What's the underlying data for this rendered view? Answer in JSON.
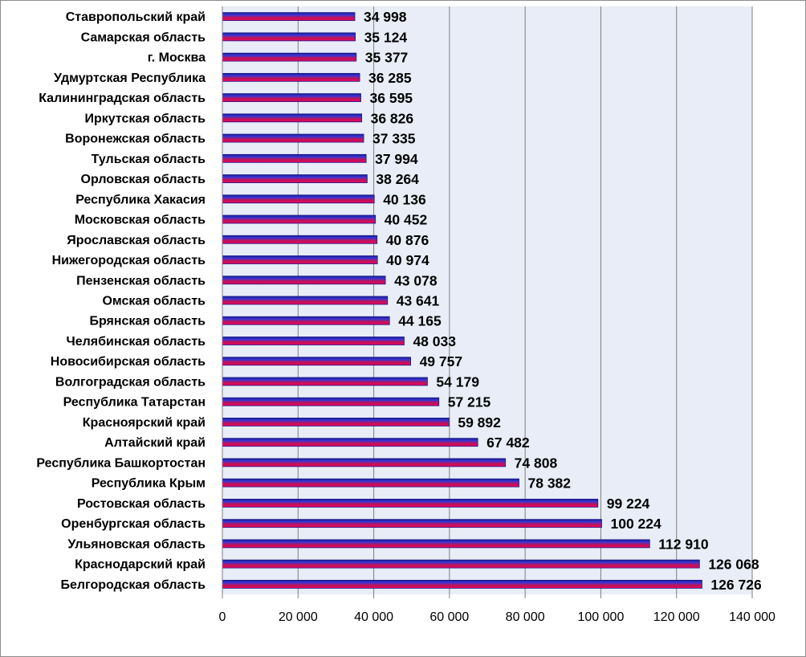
{
  "chart_data": {
    "type": "bar",
    "orientation": "horizontal",
    "categories": [
      "Ставропольский край",
      "Самарская область",
      "г. Москва",
      "Удмуртская Республика",
      "Калининградская область",
      "Иркутская область",
      "Воронежская область",
      "Тульская область",
      "Орловская область",
      "Республика Хакасия",
      "Московская область",
      "Ярославская область",
      "Нижегородская область",
      "Пензенская область",
      "Омская область",
      "Брянская область",
      "Челябинская область",
      "Новосибирская область",
      "Волгоградская область",
      "Республика Татарстан",
      "Красноярский край",
      "Алтайский край",
      "Республика Башкортостан",
      "Республика Крым",
      "Ростовская область",
      "Оренбургская область",
      "Ульяновская область",
      "Краснодарский край",
      "Белгородская область"
    ],
    "values": [
      34998,
      35124,
      35377,
      36285,
      36595,
      36826,
      37335,
      37994,
      38264,
      40136,
      40452,
      40876,
      40974,
      43078,
      43641,
      44165,
      48033,
      49757,
      54179,
      57215,
      59892,
      67482,
      74808,
      78382,
      99224,
      100224,
      112910,
      126068,
      126726
    ],
    "value_labels": [
      "34 998",
      "35 124",
      "35 377",
      "36 285",
      "36 595",
      "36 826",
      "37 335",
      "37 994",
      "38 264",
      "40 136",
      "40 452",
      "40 876",
      "40 974",
      "43 078",
      "43 641",
      "44 165",
      "48 033",
      "49 757",
      "54 179",
      "57 215",
      "59 892",
      "67 482",
      "74 808",
      "78 382",
      "99 224",
      "100 224",
      "112 910",
      "126 068",
      "126 726"
    ],
    "x_ticks": [
      "0",
      "20 000",
      "40 000",
      "60 000",
      "80 000",
      "100 000",
      "120 000",
      "140 000"
    ],
    "xlim": [
      0,
      140000
    ],
    "grid": true,
    "colors": {
      "plot_background": "#e8edf7",
      "gridline": "#7f7f7f",
      "bar_edge": "#1a1a8c",
      "bar_top": "#2f2fd0",
      "bar_mid": "#c0185a",
      "bar_bottom": "#e8005a"
    }
  }
}
